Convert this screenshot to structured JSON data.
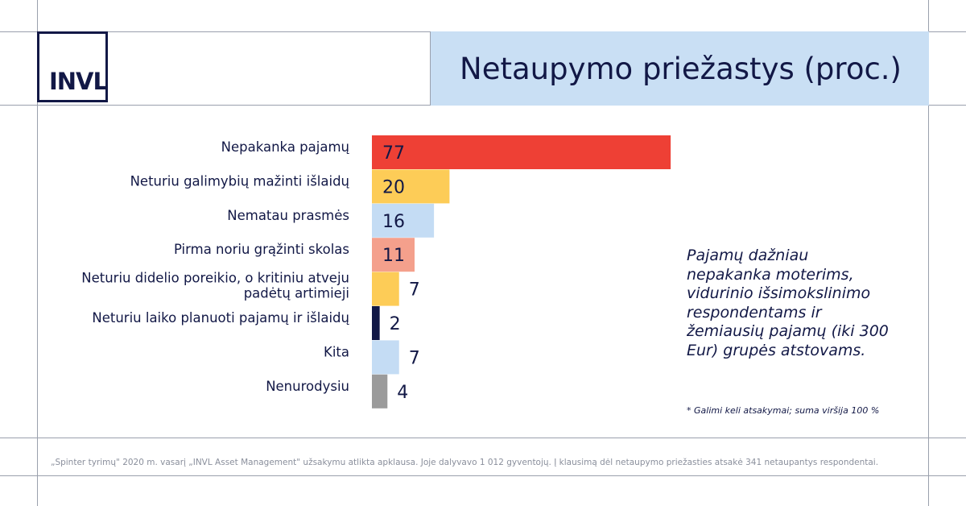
{
  "logo": {
    "text": "INVL"
  },
  "title": "Netaupymo priežastys (proc.)",
  "chart_data": {
    "type": "bar",
    "orientation": "horizontal",
    "categories": [
      "Nepakanka pajamų",
      "Neturiu galimybių mažinti išlaidų",
      "Nematau prasmės",
      "Pirma noriu grąžinti skolas",
      "Neturiu didelio poreikio, o kritiniu atveju padėtų artimieji",
      "Neturiu laiko planuoti pajamų ir išlaidų",
      "Kita",
      "Nenurodysiu"
    ],
    "values": [
      77,
      20,
      16,
      11,
      7,
      2,
      7,
      4
    ],
    "colors": [
      "#ee4035",
      "#fdcc57",
      "#c4dcf4",
      "#f4a08c",
      "#fdcc57",
      "#121846",
      "#c4dcf4",
      "#9b9b9b"
    ],
    "data_labels": [
      "77",
      "20",
      "16",
      "11",
      "7",
      "2",
      "7",
      "4"
    ],
    "title": "Netaupymo priežastys (proc.)",
    "xlim": [
      0,
      100
    ],
    "grid": false,
    "legend": "none"
  },
  "side_note": "Pajamų dažniau nepakanka moterims, vidurinio išsimokslinimo respondentams ir žemiausių pajamų (iki 300 Eur) grupės atstovams.",
  "footnote": "* Galimi keli atsakymai; suma viršija 100 %",
  "source": "„Spinter tyrimų\" 2020 m. vasarį „INVL Asset Management\" užsakymu atlikta apklausa. Joje dalyvavo 1 012 gyventojų. Į klausimą dėl netaupymo priežasties atsakė 341 netaupantys respondentai."
}
